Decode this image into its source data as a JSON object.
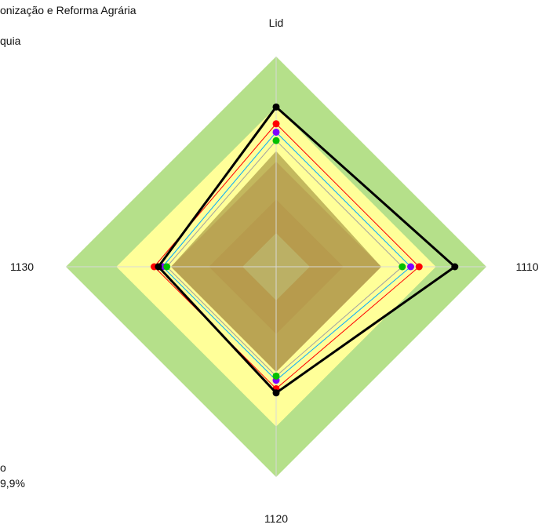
{
  "header": {
    "title_fragment": "onização e Reforma Agrária",
    "subtitle_fragment": "quia"
  },
  "footer": {
    "line1": "o",
    "line2": "9,9%"
  },
  "chart_data": {
    "type": "radar",
    "axes": [
      "Lid",
      "1110",
      "1120",
      "1130"
    ],
    "rmax": 1.0,
    "bands": [
      {
        "value": 1.0,
        "color": "#b5e08a"
      },
      {
        "value": 0.76,
        "color": "#ffff99"
      },
      {
        "value": 0.5,
        "color": "#c07850"
      },
      {
        "value": 0.32,
        "color": "#b04028"
      },
      {
        "value": 0.16,
        "color": "#c8c8c8"
      }
    ],
    "shaded_area": {
      "values": [
        0.55,
        0.5,
        0.5,
        0.5
      ],
      "color": "#b8ac54"
    },
    "series": [
      {
        "values": [
          0.76,
          0.85,
          0.6,
          0.56
        ],
        "color": "#000000",
        "marker": "#000000",
        "width": 3
      },
      {
        "values": [
          0.68,
          0.68,
          0.58,
          0.58
        ],
        "color": "#ff0000",
        "marker": "#ff0000",
        "width": 1
      },
      {
        "values": [
          0.64,
          0.64,
          0.54,
          0.54
        ],
        "color": "#00aaff",
        "marker": "#8000ff",
        "width": 1
      },
      {
        "values": [
          0.6,
          0.6,
          0.52,
          0.52
        ],
        "color": "#a0a0a0",
        "marker": "#00c000",
        "width": 1
      }
    ]
  }
}
